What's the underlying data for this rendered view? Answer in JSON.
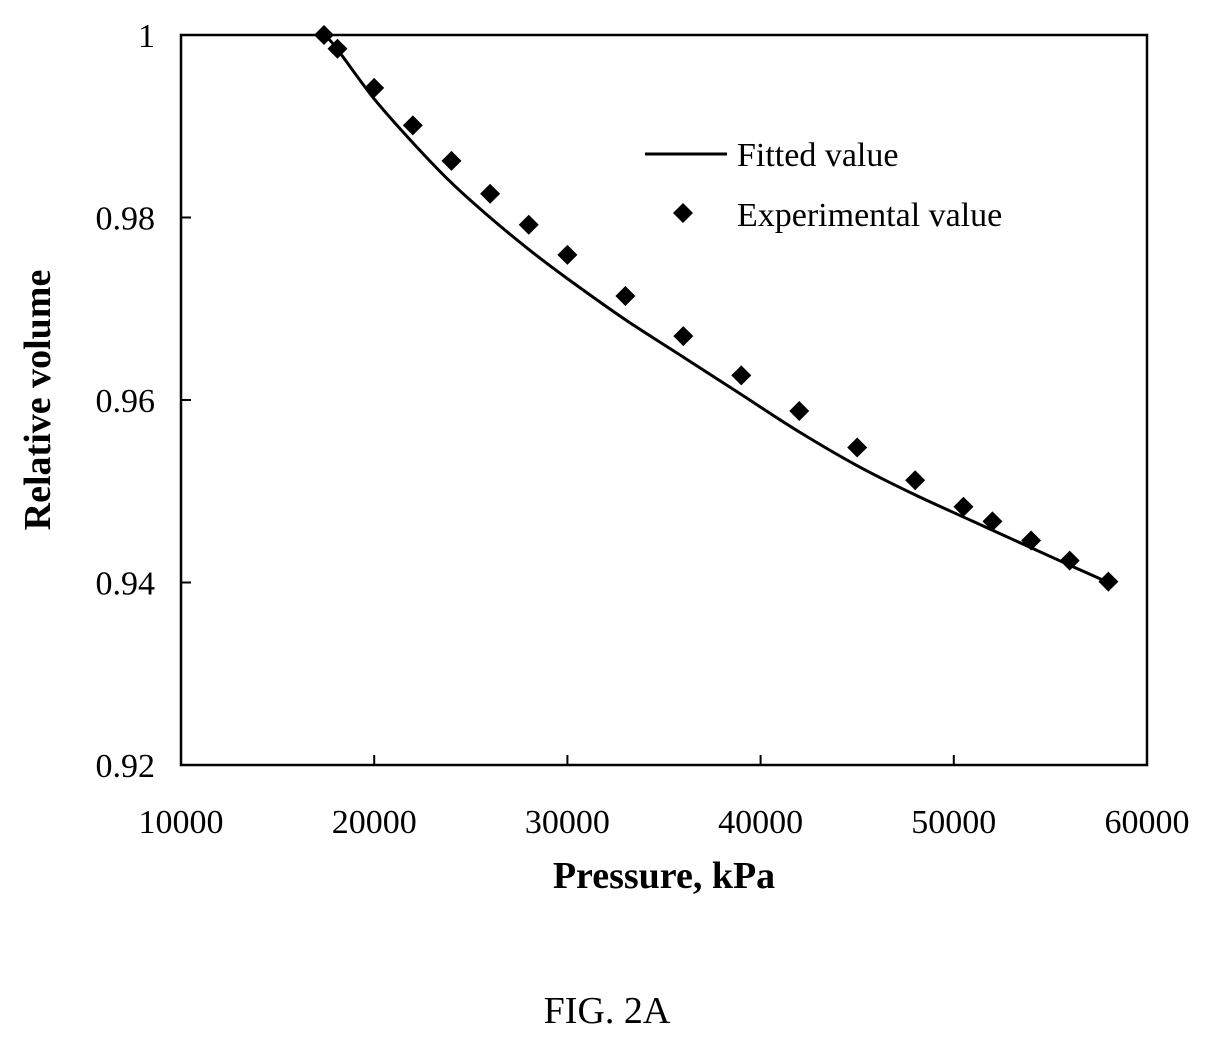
{
  "caption": "FIG. 2A",
  "chart_data": {
    "type": "scatter",
    "title": "",
    "xlabel": "Pressure, kPa",
    "ylabel": "Relative volume",
    "xlim": [
      10000,
      60000
    ],
    "ylim": [
      0.92,
      1.0
    ],
    "x_ticks": [
      10000,
      20000,
      30000,
      40000,
      50000,
      60000
    ],
    "x_tick_labels": [
      "10000",
      "20000",
      "30000",
      "40000",
      "50000",
      "60000"
    ],
    "y_ticks": [
      0.92,
      0.94,
      0.96,
      0.98,
      1.0
    ],
    "y_tick_labels": [
      "0.92",
      "0.94",
      "0.96",
      "0.98",
      "1"
    ],
    "grid": false,
    "legend_position": "top-right",
    "series": [
      {
        "name": "Fitted value",
        "kind": "line",
        "color": "#000000",
        "x": [
          17400,
          18000,
          20000,
          22000,
          24000,
          26000,
          28000,
          30000,
          33000,
          36000,
          39000,
          42000,
          45000,
          48000,
          51000,
          54000,
          56000,
          58000
        ],
        "y": [
          1.0,
          0.9987,
          0.993,
          0.9882,
          0.9838,
          0.98,
          0.9765,
          0.9733,
          0.9688,
          0.9647,
          0.9606,
          0.9565,
          0.9528,
          0.9496,
          0.9467,
          0.9438,
          0.9419,
          0.94
        ]
      },
      {
        "name": "Experimental value",
        "kind": "scatter",
        "marker": "diamond",
        "color": "#000000",
        "x": [
          17400,
          18100,
          20000,
          22000,
          24000,
          26000,
          28000,
          30000,
          33000,
          36000,
          39000,
          42000,
          45000,
          48000,
          50500,
          52000,
          54000,
          56000,
          58000
        ],
        "y": [
          1.0,
          0.9985,
          0.9942,
          0.9901,
          0.9862,
          0.9826,
          0.9792,
          0.9759,
          0.9714,
          0.967,
          0.9627,
          0.9588,
          0.9548,
          0.9512,
          0.9483,
          0.9467,
          0.9446,
          0.9424,
          0.9401
        ]
      }
    ]
  }
}
